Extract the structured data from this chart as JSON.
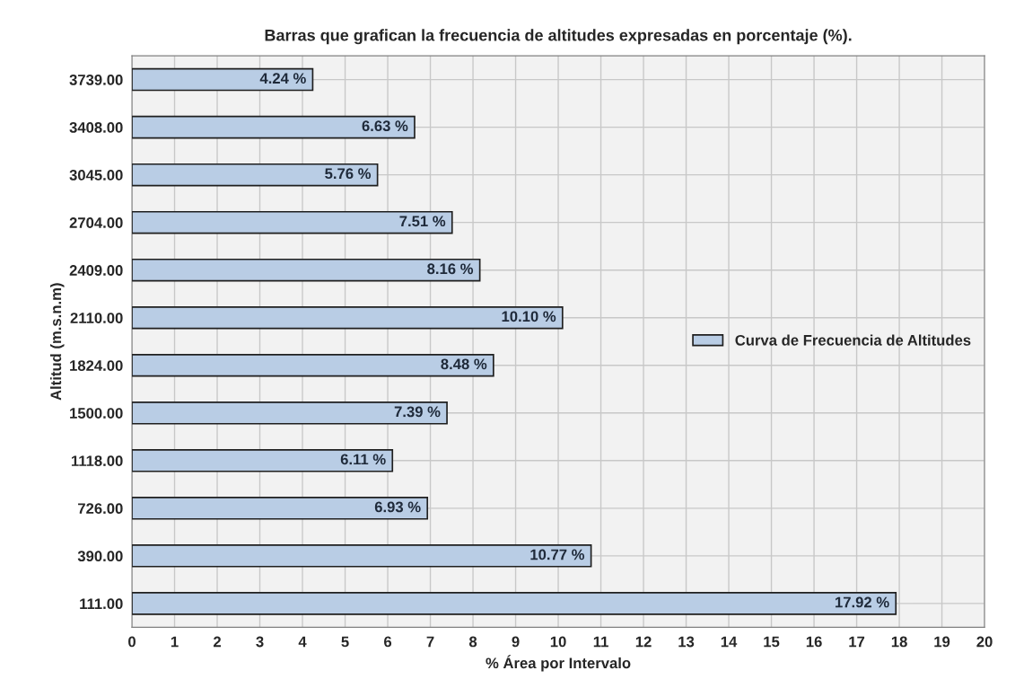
{
  "chart_data": {
    "type": "bar",
    "orientation": "horizontal",
    "title": "Barras que grafican la frecuencia de altitudes expresadas en porcentaje (%).",
    "xlabel": "% Área por Intervalo",
    "ylabel": "Altitud (m.s.n.m)",
    "categories": [
      "3739.00",
      "3408.00",
      "3045.00",
      "2704.00",
      "2409.00",
      "2110.00",
      "1824.00",
      "1500.00",
      "1118.00",
      "726.00",
      "390.00",
      "111.00"
    ],
    "series": [
      {
        "name": "Curva de Frecuencia de Altitudes",
        "color": "#b9cde5",
        "values": [
          4.24,
          6.63,
          5.76,
          7.51,
          8.16,
          10.1,
          8.48,
          7.39,
          6.11,
          6.93,
          10.77,
          17.92
        ],
        "value_labels": [
          "4.24 %",
          "6.63 %",
          "5.76 %",
          "7.51 %",
          "8.16 %",
          "10.10 %",
          "8.48 %",
          "7.39 %",
          "6.11 %",
          "6.93 %",
          "10.77 %",
          "17.92 %"
        ]
      }
    ],
    "xlim": [
      0,
      20
    ],
    "xticks": [
      0,
      1,
      2,
      3,
      4,
      5,
      6,
      7,
      8,
      9,
      10,
      11,
      12,
      13,
      14,
      15,
      16,
      17,
      18,
      19,
      20
    ],
    "grid": true,
    "legend": "right"
  }
}
